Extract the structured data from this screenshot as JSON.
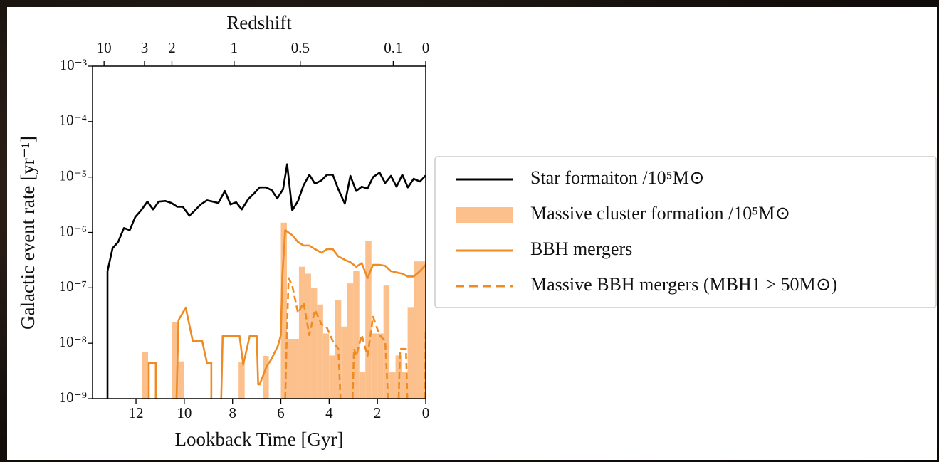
{
  "chart_data": {
    "type": "line",
    "x_label": "Lookback Time [Gyr]",
    "y_label": "Galactic event rate [yr⁻¹]",
    "x2_label": "Redshift",
    "xlim": [
      13.8,
      0
    ],
    "xticks": [
      12,
      10,
      8,
      6,
      4,
      2,
      0
    ],
    "x2ticks": [
      10,
      3,
      2,
      1,
      0.5,
      0.1,
      0
    ],
    "ylim": [
      1e-09,
      0.001
    ],
    "log_y": true,
    "yticks": [
      {
        "value": 1e-09,
        "label": "10⁻⁹"
      },
      {
        "value": 1e-08,
        "label": "10⁻⁸"
      },
      {
        "value": 1e-07,
        "label": "10⁻⁷"
      },
      {
        "value": 1e-06,
        "label": "10⁻⁶"
      },
      {
        "value": 1e-05,
        "label": "10⁻⁵"
      },
      {
        "value": 0.0001,
        "label": "10⁻⁴"
      },
      {
        "value": 0.001,
        "label": "10⁻³"
      }
    ],
    "legend": "right",
    "series": [
      {
        "name": "Star formaiton /10⁵M⊙",
        "type": "line",
        "color": "#000000",
        "dash": false,
        "x": [
          13.18,
          13.18,
          12.97,
          12.74,
          12.5,
          12.26,
          12.03,
          11.79,
          11.53,
          11.29,
          11.06,
          10.79,
          10.53,
          10.29,
          10.06,
          9.79,
          9.56,
          9.32,
          9.06,
          8.82,
          8.59,
          8.32,
          8.09,
          7.85,
          7.62,
          7.35,
          7.12,
          6.88,
          6.62,
          6.38,
          6.15,
          5.91,
          5.74,
          5.53,
          5.29,
          5.06,
          4.82,
          4.59,
          4.32,
          4.09,
          3.85,
          3.62,
          3.35,
          3.12,
          2.88,
          2.65,
          2.41,
          2.18,
          1.91,
          1.68,
          1.44,
          1.21,
          0.97,
          0.74,
          0.5,
          0.24,
          0
        ],
        "values": [
          1e-09,
          2e-07,
          5.2e-07,
          6.7e-07,
          1.2e-06,
          1.1e-06,
          1.9e-06,
          2.5e-06,
          3.6e-06,
          2.6e-06,
          3.6e-06,
          3.7e-06,
          3.4e-06,
          2.9e-06,
          2.9e-06,
          2e-06,
          2.5e-06,
          3.2e-06,
          3.8e-06,
          3.6e-06,
          3.4e-06,
          5.6e-06,
          3.2e-06,
          3.5e-06,
          2.6e-06,
          4e-06,
          5e-06,
          6.5e-06,
          6.5e-06,
          5.8e-06,
          4.1e-06,
          6e-06,
          1.7e-05,
          2.5e-06,
          3.7e-06,
          7.1e-06,
          1.1e-05,
          7.6e-06,
          8.7e-06,
          1.1e-05,
          1.1e-05,
          6e-06,
          3.3e-06,
          1.05e-05,
          5.6e-06,
          6.7e-06,
          6.2e-06,
          1e-05,
          1.2e-05,
          7.8e-06,
          1.05e-05,
          6.7e-06,
          1.1e-05,
          6.5e-06,
          9.3e-06,
          8.3e-06,
          1.07e-05
        ]
      },
      {
        "name": "Massive cluster formation /10⁵M⊙",
        "type": "histogram",
        "color": "#fbc08c",
        "bins": [
          12,
          11.75,
          11.5,
          11.25,
          11,
          10.75,
          10.5,
          10.25,
          10,
          9.75,
          9.5,
          9.25,
          9,
          8.75,
          8.5,
          8.25,
          8,
          7.75,
          7.5,
          7.25,
          7,
          6.75,
          6.5,
          6.25,
          6,
          5.75,
          5.5,
          5.25,
          5,
          4.75,
          4.5,
          4.25,
          4,
          3.75,
          3.5,
          3.25,
          3,
          2.75,
          2.5,
          2.25,
          2,
          1.75,
          1.5,
          1.25,
          1,
          0.75,
          0.5,
          0.25,
          0
        ],
        "values": [
          0,
          6.9e-09,
          0,
          0,
          0,
          0,
          2.4e-08,
          4.7e-09,
          0,
          0,
          0,
          0,
          0,
          0,
          0,
          0,
          0,
          4.6e-09,
          0,
          0,
          0,
          5.9e-09,
          0,
          0,
          1.5e-06,
          1.2e-08,
          1.2e-08,
          2.4e-07,
          1.8e-07,
          1e-07,
          5e-08,
          1.5e-08,
          6e-09,
          6e-08,
          2e-08,
          1.2e-07,
          2e-07,
          3e-09,
          7e-07,
          1.5e-08,
          1.5e-08,
          1.1e-07,
          3e-09,
          6e-09,
          3e-09,
          4.5e-08,
          3e-07,
          3e-07
        ]
      },
      {
        "name": "BBH mergers",
        "type": "line",
        "color": "#ef8b22",
        "dash": false,
        "x": [
          11.47,
          11.47,
          11.18,
          11.18,
          10.8,
          10.32,
          10.24,
          9.94,
          9.65,
          9.26,
          9.06,
          8.88,
          8.88,
          8.7,
          8.47,
          8.41,
          7.71,
          7.56,
          7.29,
          7.0,
          6.94,
          6.88,
          6.59,
          6.41,
          6.12,
          6.0,
          5.94,
          5.82,
          5.53,
          5.29,
          5.06,
          4.82,
          4.59,
          4.32,
          4.09,
          3.85,
          3.62,
          3.35,
          3.12,
          2.88,
          2.65,
          2.41,
          2.18,
          1.91,
          1.68,
          1.44,
          1.21,
          0.97,
          0.74,
          0.5,
          0.24,
          0
        ],
        "values": [
          1e-09,
          4.4e-09,
          4.4e-09,
          1e-09,
          null,
          1e-09,
          2.6e-08,
          4.4e-08,
          1.1e-08,
          1.1e-08,
          4.4e-09,
          4.4e-09,
          1e-09,
          null,
          1e-09,
          1.35e-08,
          1.35e-08,
          4.1e-09,
          1.35e-08,
          1.35e-08,
          1.8e-09,
          1.8e-09,
          3.8e-09,
          5e-09,
          9e-09,
          1.4e-08,
          1.6e-07,
          1.1e-06,
          8.9e-07,
          6.7e-07,
          5.8e-07,
          5.8e-07,
          5e-07,
          4.3e-07,
          5e-07,
          5e-07,
          3.7e-07,
          3.2e-07,
          2.9e-07,
          2.4e-07,
          2.8e-07,
          1.5e-07,
          2.6e-07,
          2.6e-07,
          2.5e-07,
          2e-07,
          1.9e-07,
          1.8e-07,
          1.6e-07,
          1.6e-07,
          2e-07,
          2.6e-07
        ]
      },
      {
        "name": "Massive BBH mergers (MBH1 > 50M⊙)",
        "type": "line",
        "color": "#ef8b22",
        "dash": true,
        "x": [
          5.82,
          5.76,
          5.68,
          5.53,
          5.29,
          5.06,
          4.82,
          4.59,
          4.32,
          4.09,
          3.85,
          3.62,
          3.53,
          3.3,
          3.03,
          2.97,
          2.88,
          2.65,
          2.41,
          2.18,
          1.91,
          1.68,
          1.56,
          1.35,
          1.12,
          1.06,
          0.82,
          0.76,
          0.4,
          0.03,
          0
        ],
        "values": [
          1e-09,
          1.1e-08,
          1.5e-07,
          1.1e-07,
          3.5e-08,
          5.4e-08,
          1.4e-08,
          4e-08,
          2.2e-08,
          1.9e-08,
          1.1e-08,
          7.9e-09,
          1e-09,
          null,
          1e-09,
          7.9e-09,
          5.9e-09,
          1.4e-08,
          5.9e-09,
          3e-08,
          1.4e-08,
          1.1e-08,
          1e-09,
          null,
          1e-09,
          7.9e-09,
          7.9e-09,
          1e-09,
          null,
          1e-09,
          1.8e-08
        ]
      }
    ]
  }
}
